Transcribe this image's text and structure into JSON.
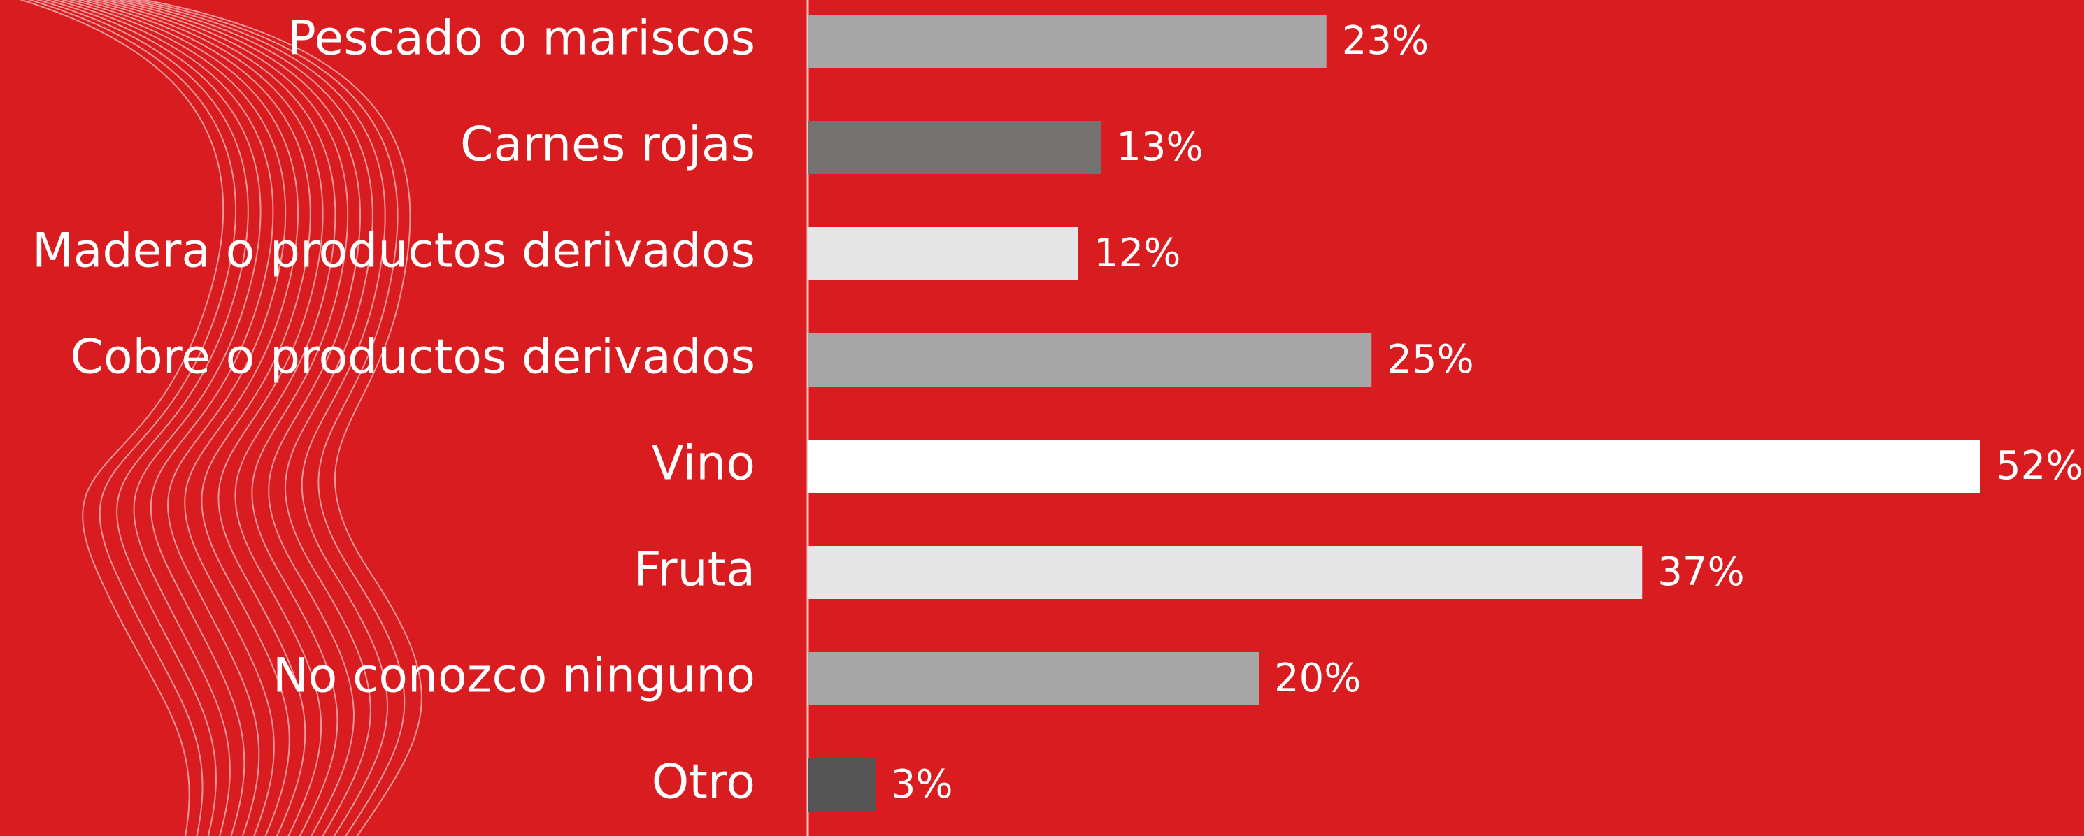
{
  "chart_data": {
    "type": "bar",
    "orientation": "horizontal",
    "categories": [
      "Pescado o mariscos",
      "Carnes rojas",
      "Madera o productos derivados",
      "Cobre o productos derivados",
      "Vino",
      "Fruta",
      "No conozco ninguno",
      "Otro"
    ],
    "values": [
      23,
      13,
      12,
      25,
      52,
      37,
      20,
      3
    ],
    "value_labels": [
      "23%",
      "13%",
      "12%",
      "25%",
      "52%",
      "37%",
      "20%",
      "3%"
    ],
    "colors": [
      "#a6a6a6",
      "#767171",
      "#e6e6e6",
      "#a6a6a6",
      "#ffffff",
      "#e6e6e6",
      "#a6a6a6",
      "#545454"
    ]
  }
}
